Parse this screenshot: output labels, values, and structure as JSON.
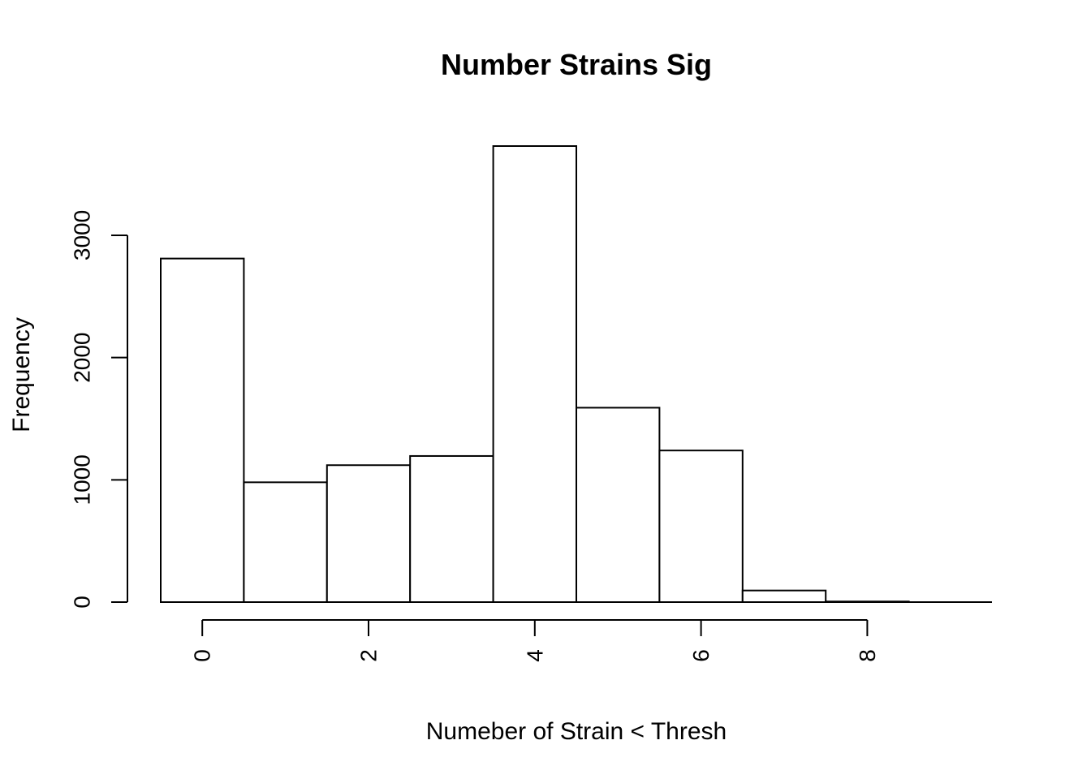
{
  "chart_data": {
    "type": "bar",
    "title": "Number Strains Sig",
    "xlabel": "Numeber of Strain < Thresh",
    "ylabel": "Frequency",
    "bins": [
      {
        "start": -0.5,
        "end": 0.5,
        "value": 2810
      },
      {
        "start": 0.5,
        "end": 1.5,
        "value": 980
      },
      {
        "start": 1.5,
        "end": 2.5,
        "value": 1120
      },
      {
        "start": 2.5,
        "end": 3.5,
        "value": 1195
      },
      {
        "start": 3.5,
        "end": 4.5,
        "value": 3730
      },
      {
        "start": 4.5,
        "end": 5.5,
        "value": 1590
      },
      {
        "start": 5.5,
        "end": 6.5,
        "value": 1240
      },
      {
        "start": 6.5,
        "end": 7.5,
        "value": 95
      },
      {
        "start": 7.5,
        "end": 8.5,
        "value": 5
      },
      {
        "start": 8.5,
        "end": 9.5,
        "value": 0
      }
    ],
    "xticks": [
      0,
      2,
      4,
      6,
      8
    ],
    "xtick_labels": [
      "0",
      "2",
      "4",
      "6",
      "8"
    ],
    "yticks": [
      0,
      1000,
      2000,
      3000
    ],
    "ytick_labels": [
      "0",
      "1000",
      "2000",
      "3000"
    ],
    "xlim": [
      -0.5,
      9.5
    ],
    "ylim": [
      0,
      3730
    ],
    "grid": false,
    "colors": {
      "bar_fill": "#ffffff",
      "bar_stroke": "#000000"
    }
  }
}
